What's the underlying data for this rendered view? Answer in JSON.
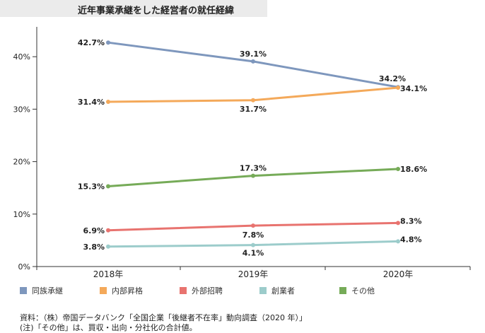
{
  "header": {
    "title": "近年事業承継をした経営者の就任経緯"
  },
  "chart_data": {
    "type": "line",
    "title": "近年事業承継をした経営者の就任経緯",
    "categories": [
      "2018年",
      "2019年",
      "2020年"
    ],
    "y_tick_labels": [
      "0%",
      "10%",
      "20%",
      "30%",
      "40%"
    ],
    "ylim": [
      0,
      45
    ],
    "grid": false,
    "legend_position": "bottom",
    "series": [
      {
        "name": "同族承継",
        "color": "#7e97bd",
        "values": [
          42.7,
          39.1,
          34.2
        ],
        "labels": [
          "42.7%",
          "39.1%",
          "34.2%"
        ]
      },
      {
        "name": "内部昇格",
        "color": "#f4a95a",
        "values": [
          31.4,
          31.7,
          34.1
        ],
        "labels": [
          "31.4%",
          "31.7%",
          "34.1%"
        ]
      },
      {
        "name": "外部招聘",
        "color": "#e8736f",
        "values": [
          6.9,
          7.8,
          8.3
        ],
        "labels": [
          "6.9%",
          "7.8%",
          "8.3%"
        ]
      },
      {
        "name": "創業者",
        "color": "#9ccccb",
        "values": [
          3.8,
          4.1,
          4.8
        ],
        "labels": [
          "3.8%",
          "4.1%",
          "4.8%"
        ]
      },
      {
        "name": "その他",
        "color": "#76ab58",
        "values": [
          15.3,
          17.3,
          18.6
        ],
        "labels": [
          "15.3%",
          "17.3%",
          "18.6%"
        ]
      }
    ]
  },
  "footnotes": {
    "source": "資料：（株）帝国データバンク「全国企業「後継者不在率」動向調査（2020 年）」",
    "note": "(注)「その他」は、買収・出向・分社化の合計値。"
  }
}
